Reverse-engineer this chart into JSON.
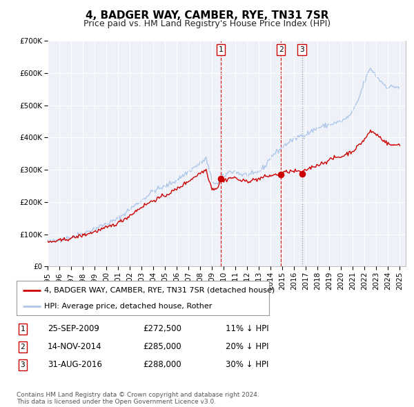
{
  "title": "4, BADGER WAY, CAMBER, RYE, TN31 7SR",
  "subtitle": "Price paid vs. HM Land Registry's House Price Index (HPI)",
  "ylim": [
    0,
    700000
  ],
  "yticks": [
    0,
    100000,
    200000,
    300000,
    400000,
    500000,
    600000,
    700000
  ],
  "ytick_labels": [
    "£0",
    "£100K",
    "£200K",
    "£300K",
    "£400K",
    "£500K",
    "£600K",
    "£700K"
  ],
  "xlim_start": 1995.0,
  "xlim_end": 2025.5,
  "hpi_color": "#aec6e8",
  "price_color": "#cc0000",
  "bg_color": "#eef2f8",
  "sale_dates": [
    2009.733,
    2014.869,
    2016.664
  ],
  "sale_prices": [
    272500,
    285000,
    288000
  ],
  "sale_labels": [
    "1",
    "2",
    "3"
  ],
  "vline_colors": [
    "#cc0000",
    "#cc0000",
    "#888888"
  ],
  "vline_styles": [
    "--",
    "--",
    ":"
  ],
  "legend_red_label": "4, BADGER WAY, CAMBER, RYE, TN31 7SR (detached house)",
  "legend_blue_label": "HPI: Average price, detached house, Rother",
  "table_rows": [
    [
      "1",
      "25-SEP-2009",
      "£272,500",
      "11% ↓ HPI"
    ],
    [
      "2",
      "14-NOV-2014",
      "£285,000",
      "20% ↓ HPI"
    ],
    [
      "3",
      "31-AUG-2016",
      "£288,000",
      "30% ↓ HPI"
    ]
  ],
  "footer": "Contains HM Land Registry data © Crown copyright and database right 2024.\nThis data is licensed under the Open Government Licence v3.0.",
  "title_fontsize": 11,
  "subtitle_fontsize": 9,
  "tick_fontsize": 7.5,
  "legend_fontsize": 8,
  "table_fontsize": 8.5,
  "footer_fontsize": 6.5,
  "xticks": [
    1995,
    1996,
    1997,
    1998,
    1999,
    2000,
    2001,
    2002,
    2003,
    2004,
    2005,
    2006,
    2007,
    2008,
    2009,
    2010,
    2011,
    2012,
    2013,
    2014,
    2015,
    2016,
    2017,
    2018,
    2019,
    2020,
    2021,
    2022,
    2023,
    2024,
    2025
  ]
}
